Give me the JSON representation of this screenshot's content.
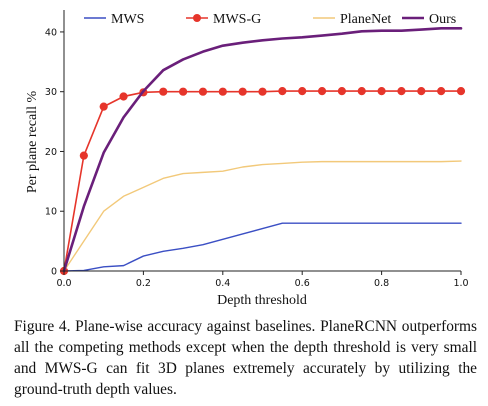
{
  "chart_data": {
    "type": "line",
    "title": "",
    "xlabel": "Depth threshold",
    "ylabel": "Per plane recall %",
    "xlim": [
      0.0,
      1.0
    ],
    "ylim": [
      0,
      43
    ],
    "xticks": [
      "0.0",
      "0.2",
      "0.4",
      "0.6",
      "0.8",
      "1.0"
    ],
    "yticks": [
      "0",
      "10",
      "20",
      "30",
      "40"
    ],
    "grid": false,
    "legend_position": "top, outside",
    "x": [
      0.0,
      0.05,
      0.1,
      0.15,
      0.2,
      0.25,
      0.3,
      0.35,
      0.4,
      0.45,
      0.5,
      0.55,
      0.6,
      0.65,
      0.7,
      0.75,
      0.8,
      0.85,
      0.9,
      0.95,
      1.0
    ],
    "series": [
      {
        "name": "MWS",
        "color": "#3b4fc4",
        "marker": "none",
        "values": [
          0.0,
          0.1,
          0.7,
          0.9,
          2.5,
          3.3,
          3.8,
          4.4,
          5.3,
          6.2,
          7.1,
          8.0,
          8.0,
          8.0,
          8.0,
          8.0,
          8.0,
          8.0,
          8.0,
          8.0,
          8.0
        ]
      },
      {
        "name": "MWS-G",
        "color": "#e6352b",
        "marker": "circle",
        "values": [
          0.0,
          19.3,
          27.5,
          29.2,
          29.9,
          30.0,
          30.0,
          30.0,
          30.0,
          30.0,
          30.0,
          30.1,
          30.1,
          30.1,
          30.1,
          30.1,
          30.1,
          30.1,
          30.1,
          30.1,
          30.1
        ]
      },
      {
        "name": "PlaneNet",
        "color": "#f2c97a",
        "marker": "none",
        "values": [
          0.0,
          5.0,
          10.0,
          12.5,
          14.0,
          15.5,
          16.3,
          16.5,
          16.7,
          17.4,
          17.8,
          18.0,
          18.2,
          18.3,
          18.3,
          18.3,
          18.3,
          18.3,
          18.3,
          18.3,
          18.4
        ]
      },
      {
        "name": "Ours",
        "color": "#6a1f7a",
        "marker": "none",
        "values": [
          0.0,
          10.8,
          19.8,
          25.7,
          30.1,
          33.6,
          35.4,
          36.7,
          37.7,
          38.2,
          38.6,
          38.9,
          39.1,
          39.4,
          39.7,
          40.1,
          40.2,
          40.2,
          40.4,
          40.6,
          40.6
        ]
      }
    ]
  },
  "caption": "Figure 4. Plane-wise accuracy against baselines. PlaneRCNN outperforms all the competing methods except when the depth threshold is very small and MWS-G can fit 3D planes extremely accurately by utilizing the ground-truth depth values."
}
